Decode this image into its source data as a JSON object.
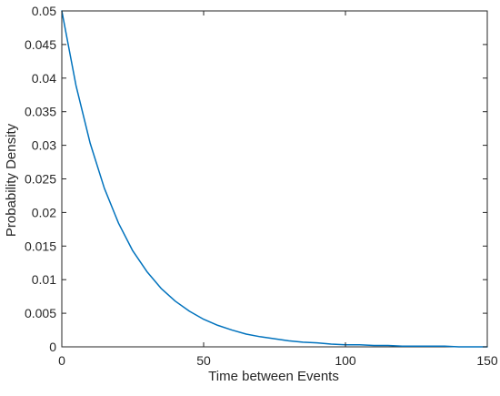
{
  "chart_data": {
    "type": "line",
    "title": "",
    "xlabel": "Time between Events",
    "ylabel": "Probability Density",
    "xlim": [
      0,
      150
    ],
    "ylim": [
      0,
      0.05
    ],
    "grid": false,
    "legend": "none",
    "x_ticks": [
      "0",
      "50",
      "100",
      "150"
    ],
    "y_ticks": [
      "0",
      "0.005",
      "0.01",
      "0.015",
      "0.02",
      "0.025",
      "0.03",
      "0.035",
      "0.04",
      "0.045",
      "0.05"
    ],
    "series": [
      {
        "color": "#0072BD",
        "x": [
          0,
          5,
          10,
          15,
          20,
          25,
          30,
          35,
          40,
          45,
          50,
          55,
          60,
          65,
          70,
          75,
          80,
          85,
          90,
          95,
          100,
          105,
          110,
          115,
          120,
          125,
          130,
          135,
          140,
          145,
          150
        ],
        "y": [
          0.05,
          0.0389,
          0.0303,
          0.0236,
          0.0184,
          0.0143,
          0.0112,
          0.0087,
          0.0068,
          0.0053,
          0.0041,
          0.0032,
          0.0025,
          0.0019,
          0.0015,
          0.0012,
          0.0009,
          0.0007,
          0.0006,
          0.0004,
          0.0003,
          0.0003,
          0.0002,
          0.0002,
          0.0001,
          0.0001,
          0.0001,
          0.0001,
          0.0,
          0.0,
          0.0
        ]
      }
    ]
  },
  "colors": {
    "axis": "#262626",
    "line": "#0072BD",
    "background": "#ffffff"
  }
}
